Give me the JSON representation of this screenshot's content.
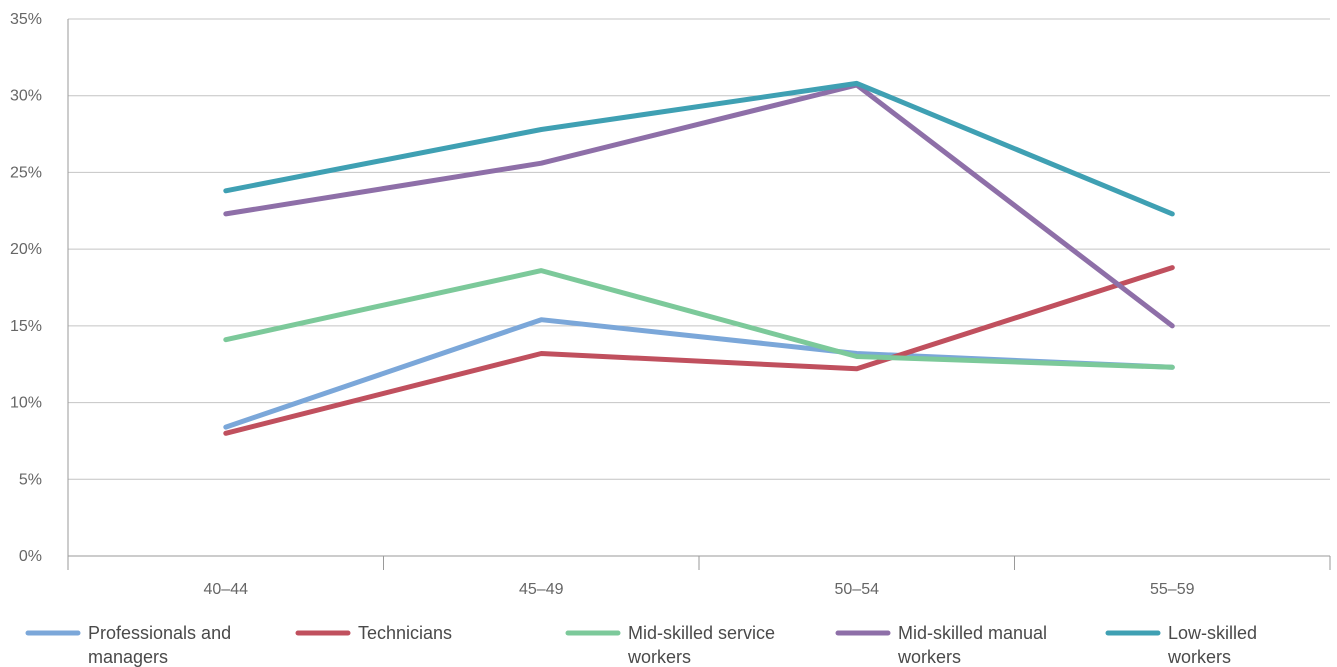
{
  "chart_data": {
    "type": "line",
    "categories": [
      "40–44",
      "45–49",
      "50–54",
      "55–59"
    ],
    "ylim": [
      0,
      35
    ],
    "yticks": [
      0,
      5,
      10,
      15,
      20,
      25,
      30,
      35
    ],
    "ytick_labels": [
      "0%",
      "5%",
      "10%",
      "15%",
      "20%",
      "25%",
      "30%",
      "35%"
    ],
    "grid": true,
    "legend_position": "bottom",
    "series": [
      {
        "name": "Professionals and managers",
        "legend_lines": [
          "Professionals and",
          "managers"
        ],
        "color": "#7BA7D9",
        "values": [
          8.4,
          15.4,
          13.2,
          12.3
        ]
      },
      {
        "name": "Technicians",
        "legend_lines": [
          "Technicians"
        ],
        "color": "#C0505E",
        "values": [
          8.0,
          13.2,
          12.2,
          18.8
        ]
      },
      {
        "name": "Mid-skilled service workers",
        "legend_lines": [
          "Mid-skilled service",
          "workers"
        ],
        "color": "#7CC99A",
        "values": [
          14.1,
          18.6,
          13.0,
          12.3
        ]
      },
      {
        "name": "Mid-skilled manual workers",
        "legend_lines": [
          "Mid-skilled manual",
          "workers"
        ],
        "color": "#8E6FA8",
        "values": [
          22.3,
          25.6,
          30.7,
          15.0
        ]
      },
      {
        "name": "Low-skilled workers",
        "legend_lines": [
          "Low-skilled",
          "workers"
        ],
        "color": "#3FA0B3",
        "values": [
          23.8,
          27.8,
          30.8,
          22.3
        ]
      }
    ]
  }
}
